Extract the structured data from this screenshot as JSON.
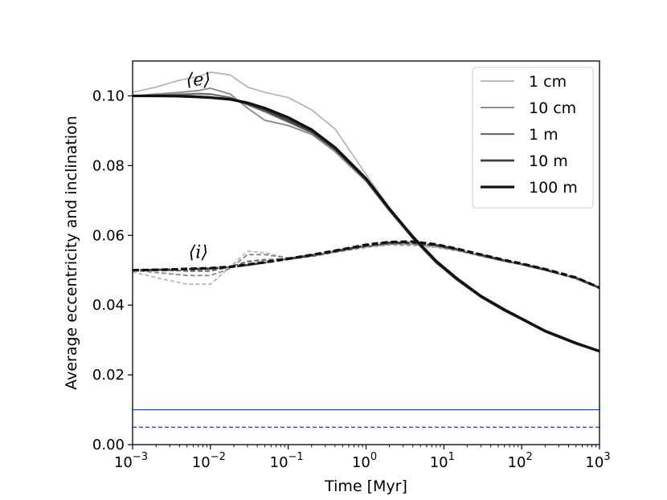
{
  "chart_data": {
    "type": "line",
    "title": "",
    "xlabel": "Time [Myr]",
    "ylabel": "Average eccentricity and inclination",
    "xscale": "log",
    "xlim": [
      0.001,
      1000
    ],
    "ylim": [
      0.0,
      0.11
    ],
    "x_ticks": [
      {
        "value": 0.001,
        "base": "10",
        "exp": "−3"
      },
      {
        "value": 0.01,
        "base": "10",
        "exp": "−2"
      },
      {
        "value": 0.1,
        "base": "10",
        "exp": "−1"
      },
      {
        "value": 1,
        "base": "10",
        "exp": "0"
      },
      {
        "value": 10,
        "base": "10",
        "exp": "1"
      },
      {
        "value": 100,
        "base": "10",
        "exp": "2"
      },
      {
        "value": 1000,
        "base": "10",
        "exp": "3"
      }
    ],
    "y_ticks": [
      {
        "value": 0.0,
        "label": "0.00"
      },
      {
        "value": 0.02,
        "label": "0.02"
      },
      {
        "value": 0.04,
        "label": "0.04"
      },
      {
        "value": 0.06,
        "label": "0.06"
      },
      {
        "value": 0.08,
        "label": "0.08"
      },
      {
        "value": 0.1,
        "label": "0.10"
      }
    ],
    "legend_position": "top-right",
    "series": [
      {
        "name": "1 cm",
        "color": "#b3b3b3",
        "eccentricity": {
          "x": [
            0.001,
            0.002,
            0.004,
            0.007,
            0.01,
            0.018,
            0.03,
            0.05,
            0.1,
            0.2,
            0.4,
            1,
            2,
            4,
            8,
            15,
            30,
            60,
            100,
            200,
            500,
            1000
          ],
          "y": [
            0.101,
            0.1025,
            0.1045,
            0.1055,
            0.1068,
            0.106,
            0.1025,
            0.101,
            0.0995,
            0.096,
            0.0905,
            0.0775,
            0.068,
            0.0595,
            0.0525,
            0.0475,
            0.0425,
            0.0385,
            0.036,
            0.0325,
            0.029,
            0.0268
          ]
        },
        "inclination": {
          "x": [
            0.001,
            0.003,
            0.005,
            0.01,
            0.018,
            0.03,
            0.05,
            0.1,
            0.2,
            0.5,
            1,
            2,
            4,
            8,
            15,
            30,
            60,
            100,
            200,
            500,
            1000
          ],
          "y": [
            0.0495,
            0.047,
            0.046,
            0.046,
            0.051,
            0.0555,
            0.055,
            0.0535,
            0.054,
            0.0555,
            0.0565,
            0.0572,
            0.057,
            0.0565,
            0.0555,
            0.054,
            0.0525,
            0.0515,
            0.05,
            0.0475,
            0.0448
          ]
        }
      },
      {
        "name": "10 cm",
        "color": "#8f8f8f",
        "eccentricity": {
          "x": [
            0.001,
            0.002,
            0.004,
            0.007,
            0.01,
            0.018,
            0.03,
            0.05,
            0.1,
            0.2,
            0.4,
            1,
            2,
            4,
            8,
            15,
            30,
            60,
            100,
            200,
            500,
            1000
          ],
          "y": [
            0.1,
            0.1005,
            0.101,
            0.1015,
            0.1022,
            0.1005,
            0.0965,
            0.093,
            0.0915,
            0.089,
            0.084,
            0.0755,
            0.067,
            0.059,
            0.052,
            0.047,
            0.0422,
            0.0383,
            0.0358,
            0.0323,
            0.0288,
            0.0266
          ]
        },
        "inclination": {
          "x": [
            0.001,
            0.003,
            0.005,
            0.01,
            0.018,
            0.03,
            0.05,
            0.1,
            0.2,
            0.5,
            1,
            2,
            4,
            8,
            15,
            30,
            60,
            100,
            200,
            500,
            1000
          ],
          "y": [
            0.05,
            0.049,
            0.0485,
            0.0485,
            0.0505,
            0.0545,
            0.0545,
            0.0535,
            0.0542,
            0.0558,
            0.0568,
            0.0575,
            0.0574,
            0.0568,
            0.0557,
            0.0541,
            0.0526,
            0.0516,
            0.05,
            0.0476,
            0.0449
          ]
        }
      },
      {
        "name": "1 m",
        "color": "#6e6e6e",
        "eccentricity": {
          "x": [
            0.001,
            0.002,
            0.004,
            0.007,
            0.01,
            0.018,
            0.03,
            0.05,
            0.1,
            0.2,
            0.4,
            1,
            2,
            4,
            8,
            15,
            30,
            60,
            100,
            200,
            500,
            1000
          ],
          "y": [
            0.1,
            0.1002,
            0.1004,
            0.1006,
            0.1005,
            0.0995,
            0.0975,
            0.0955,
            0.0925,
            0.0895,
            0.0845,
            0.0758,
            0.0672,
            0.0592,
            0.0522,
            0.0471,
            0.0423,
            0.0384,
            0.0359,
            0.0324,
            0.0289,
            0.0267
          ]
        },
        "inclination": {
          "x": [
            0.001,
            0.003,
            0.005,
            0.01,
            0.018,
            0.03,
            0.05,
            0.1,
            0.2,
            0.5,
            1,
            2,
            4,
            8,
            15,
            30,
            60,
            100,
            200,
            500,
            1000
          ],
          "y": [
            0.05,
            0.05,
            0.0498,
            0.0498,
            0.051,
            0.0525,
            0.053,
            0.0532,
            0.054,
            0.0556,
            0.0568,
            0.0576,
            0.0576,
            0.057,
            0.0558,
            0.0542,
            0.0527,
            0.0517,
            0.0501,
            0.0477,
            0.0449
          ]
        }
      },
      {
        "name": "10 m",
        "color": "#404040",
        "eccentricity": {
          "x": [
            0.001,
            0.002,
            0.004,
            0.007,
            0.01,
            0.018,
            0.03,
            0.05,
            0.1,
            0.2,
            0.4,
            1,
            2,
            4,
            8,
            15,
            30,
            60,
            100,
            200,
            500,
            1000
          ],
          "y": [
            0.1,
            0.1,
            0.1,
            0.0998,
            0.0996,
            0.099,
            0.0978,
            0.096,
            0.093,
            0.0898,
            0.0848,
            0.076,
            0.0674,
            0.0594,
            0.0524,
            0.0473,
            0.0425,
            0.0386,
            0.036,
            0.0325,
            0.029,
            0.0268
          ]
        },
        "inclination": {
          "x": [
            0.001,
            0.003,
            0.005,
            0.01,
            0.018,
            0.03,
            0.05,
            0.1,
            0.2,
            0.5,
            1,
            2,
            4,
            8,
            15,
            30,
            60,
            100,
            200,
            500,
            1000
          ],
          "y": [
            0.05,
            0.0502,
            0.0503,
            0.0505,
            0.0509,
            0.0515,
            0.0522,
            0.0532,
            0.0543,
            0.0559,
            0.0571,
            0.0579,
            0.0579,
            0.0572,
            0.056,
            0.0544,
            0.0528,
            0.0518,
            0.0502,
            0.0478,
            0.045
          ]
        }
      },
      {
        "name": "100 m",
        "color": "#111111",
        "eccentricity": {
          "x": [
            0.001,
            0.002,
            0.004,
            0.007,
            0.01,
            0.018,
            0.03,
            0.05,
            0.1,
            0.2,
            0.4,
            1,
            2,
            4,
            8,
            15,
            30,
            60,
            100,
            200,
            500,
            1000
          ],
          "y": [
            0.1,
            0.1,
            0.0999,
            0.0997,
            0.0995,
            0.099,
            0.098,
            0.0965,
            0.0938,
            0.0903,
            0.0852,
            0.0763,
            0.0676,
            0.0596,
            0.0526,
            0.0475,
            0.0426,
            0.0387,
            0.0361,
            0.0326,
            0.0291,
            0.0268
          ]
        },
        "inclination": {
          "x": [
            0.001,
            0.003,
            0.005,
            0.01,
            0.018,
            0.03,
            0.05,
            0.1,
            0.2,
            0.5,
            1,
            2,
            4,
            8,
            15,
            30,
            60,
            100,
            200,
            500,
            1000
          ],
          "y": [
            0.05,
            0.0502,
            0.0504,
            0.0506,
            0.051,
            0.0516,
            0.0523,
            0.0533,
            0.0544,
            0.056,
            0.0573,
            0.0581,
            0.0582,
            0.0574,
            0.0561,
            0.0545,
            0.0529,
            0.0519,
            0.0503,
            0.0479,
            0.045
          ]
        }
      }
    ],
    "reference_lines": [
      {
        "name": "solid-reference",
        "y": 0.01,
        "style": "solid",
        "color": "#2233cc"
      },
      {
        "name": "dashed-reference",
        "y": 0.005,
        "style": "dashed",
        "color": "#2233cc"
      }
    ],
    "annotations": [
      {
        "name": "e-annotation",
        "text": "⟨e⟩",
        "x": 0.007,
        "y": 0.103
      },
      {
        "name": "i-annotation",
        "text": "⟨i⟩",
        "x": 0.007,
        "y": 0.0535
      }
    ]
  }
}
